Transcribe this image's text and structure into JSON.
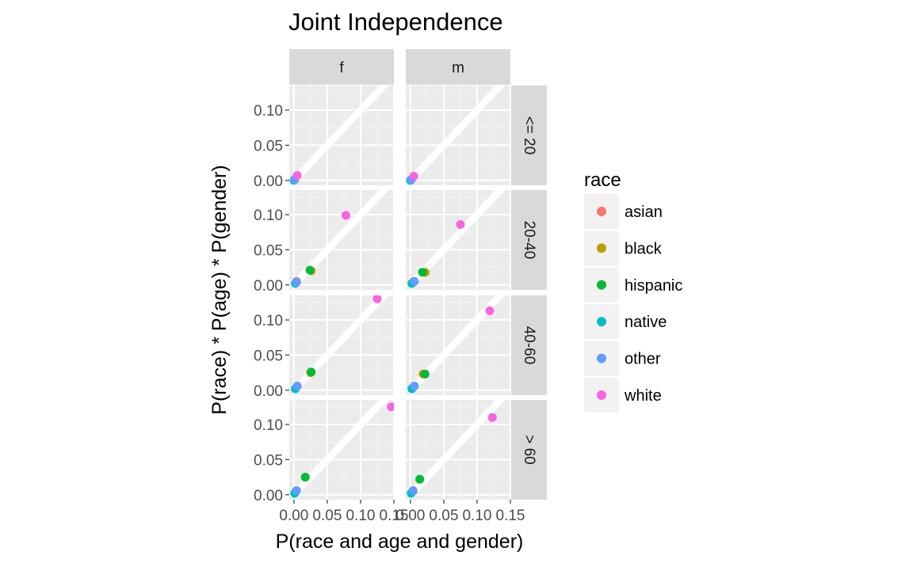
{
  "chart_data": {
    "type": "scatter",
    "title": "Joint Independence",
    "xlabel": "P(race and age and gender)",
    "ylabel": "P(race) * P(age) * P(gender)",
    "xlim": [
      -0.007,
      0.15
    ],
    "ylim": [
      -0.007,
      0.135
    ],
    "x_ticks": [
      0.0,
      0.05,
      0.1,
      0.15
    ],
    "x_tick_labels": [
      "0.00",
      "0.05",
      "0.10",
      "0.15"
    ],
    "y_ticks": [
      0.0,
      0.05,
      0.1
    ],
    "y_tick_labels": [
      "0.00",
      "0.05",
      "0.10"
    ],
    "reference_line": "y = x",
    "grid": true,
    "facet_columns": [
      "f",
      "m"
    ],
    "facet_rows": [
      "<= 20",
      "20-40",
      "40-60",
      "> 60"
    ],
    "legend": {
      "title": "race",
      "position": "right",
      "items": [
        {
          "label": "asian",
          "color": "#F8766D"
        },
        {
          "label": "black",
          "color": "#B79F00"
        },
        {
          "label": "hispanic",
          "color": "#00BA38"
        },
        {
          "label": "native",
          "color": "#00BFC4"
        },
        {
          "label": "other",
          "color": "#619CFF"
        },
        {
          "label": "white",
          "color": "#F564E3"
        }
      ]
    },
    "panels": [
      {
        "col": "f",
        "row": "<= 20",
        "points": [
          {
            "race": "asian",
            "x": 0.001,
            "y": 0.001
          },
          {
            "race": "black",
            "x": 0.001,
            "y": 0.001
          },
          {
            "race": "hispanic",
            "x": 0.001,
            "y": 0.001
          },
          {
            "race": "native",
            "x": 0.0,
            "y": 0.0
          },
          {
            "race": "other",
            "x": 0.001,
            "y": 0.001
          },
          {
            "race": "white",
            "x": 0.005,
            "y": 0.007
          }
        ]
      },
      {
        "col": "m",
        "row": "<= 20",
        "points": [
          {
            "race": "asian",
            "x": 0.001,
            "y": 0.001
          },
          {
            "race": "black",
            "x": 0.001,
            "y": 0.001
          },
          {
            "race": "hispanic",
            "x": 0.001,
            "y": 0.001
          },
          {
            "race": "native",
            "x": 0.0,
            "y": 0.0
          },
          {
            "race": "other",
            "x": 0.001,
            "y": 0.001
          },
          {
            "race": "white",
            "x": 0.005,
            "y": 0.006
          }
        ]
      },
      {
        "col": "f",
        "row": "20-40",
        "points": [
          {
            "race": "asian",
            "x": 0.004,
            "y": 0.005
          },
          {
            "race": "black",
            "x": 0.026,
            "y": 0.02
          },
          {
            "race": "hispanic",
            "x": 0.024,
            "y": 0.021
          },
          {
            "race": "native",
            "x": 0.002,
            "y": 0.002
          },
          {
            "race": "other",
            "x": 0.004,
            "y": 0.004
          },
          {
            "race": "white",
            "x": 0.078,
            "y": 0.099
          }
        ]
      },
      {
        "col": "m",
        "row": "20-40",
        "points": [
          {
            "race": "asian",
            "x": 0.005,
            "y": 0.005
          },
          {
            "race": "black",
            "x": 0.022,
            "y": 0.018
          },
          {
            "race": "hispanic",
            "x": 0.018,
            "y": 0.018
          },
          {
            "race": "native",
            "x": 0.002,
            "y": 0.002
          },
          {
            "race": "other",
            "x": 0.006,
            "y": 0.005
          },
          {
            "race": "white",
            "x": 0.075,
            "y": 0.086
          }
        ]
      },
      {
        "col": "f",
        "row": "40-60",
        "points": [
          {
            "race": "asian",
            "x": 0.005,
            "y": 0.006
          },
          {
            "race": "black",
            "x": 0.025,
            "y": 0.025
          },
          {
            "race": "hispanic",
            "x": 0.026,
            "y": 0.026
          },
          {
            "race": "native",
            "x": 0.002,
            "y": 0.002
          },
          {
            "race": "other",
            "x": 0.005,
            "y": 0.006
          },
          {
            "race": "white",
            "x": 0.125,
            "y": 0.13
          }
        ]
      },
      {
        "col": "m",
        "row": "40-60",
        "points": [
          {
            "race": "asian",
            "x": 0.005,
            "y": 0.005
          },
          {
            "race": "black",
            "x": 0.019,
            "y": 0.023
          },
          {
            "race": "hispanic",
            "x": 0.022,
            "y": 0.023
          },
          {
            "race": "native",
            "x": 0.002,
            "y": 0.002
          },
          {
            "race": "other",
            "x": 0.006,
            "y": 0.006
          },
          {
            "race": "white",
            "x": 0.119,
            "y": 0.113
          }
        ]
      },
      {
        "col": "f",
        "row": "> 60",
        "points": [
          {
            "race": "asian",
            "x": 0.003,
            "y": 0.005
          },
          {
            "race": "black",
            "x": 0.017,
            "y": 0.025
          },
          {
            "race": "hispanic",
            "x": 0.017,
            "y": 0.025
          },
          {
            "race": "native",
            "x": 0.001,
            "y": 0.002
          },
          {
            "race": "other",
            "x": 0.004,
            "y": 0.006
          },
          {
            "race": "white",
            "x": 0.146,
            "y": 0.125
          }
        ]
      },
      {
        "col": "m",
        "row": "> 60",
        "points": [
          {
            "race": "asian",
            "x": 0.004,
            "y": 0.005
          },
          {
            "race": "black",
            "x": 0.014,
            "y": 0.022
          },
          {
            "race": "hispanic",
            "x": 0.014,
            "y": 0.022
          },
          {
            "race": "native",
            "x": 0.001,
            "y": 0.002
          },
          {
            "race": "other",
            "x": 0.004,
            "y": 0.006
          },
          {
            "race": "white",
            "x": 0.123,
            "y": 0.11
          }
        ]
      }
    ]
  }
}
